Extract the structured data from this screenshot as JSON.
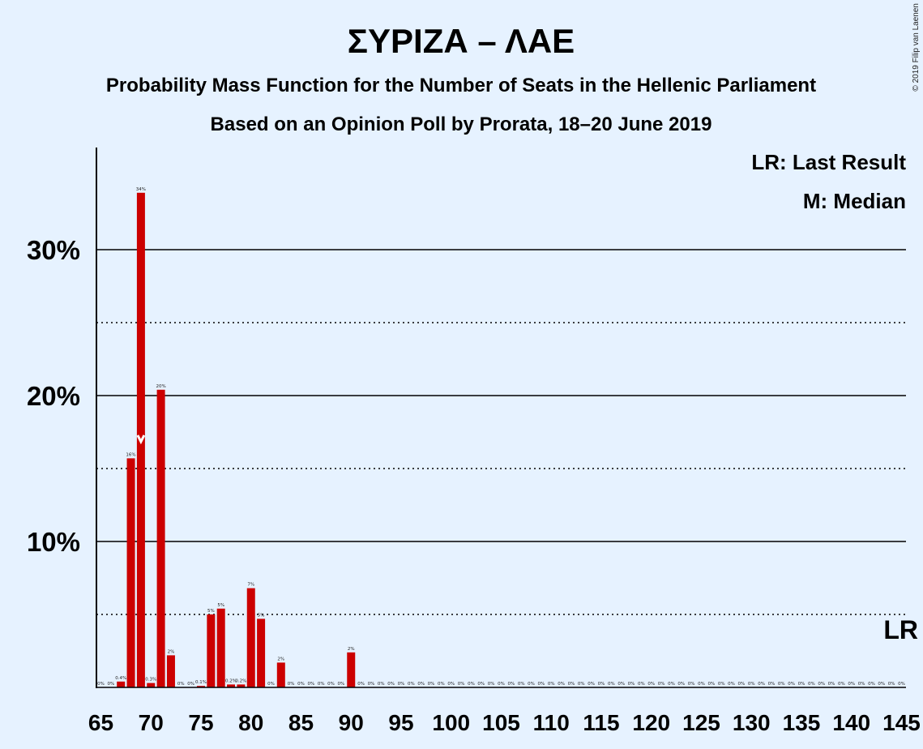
{
  "chart_data": {
    "type": "bar",
    "title": "ΣΥΡΙΖΑ – ΛΑΕ",
    "subtitle": "Probability Mass Function for the Number of Seats in the Hellenic Parliament",
    "subtitle2": "Based on an Opinion Poll by Prorata, 18–20 June 2019",
    "copyright": "© 2019 Filip van Laenen",
    "legend": {
      "lr": "LR: Last Result",
      "m": "M: Median",
      "placement": "top-right"
    },
    "lr_label": "LR",
    "median_label": "M",
    "median_seat": 69,
    "last_result_seat": 145,
    "xlim": [
      65,
      145
    ],
    "ylim": [
      0,
      37
    ],
    "x_ticks": [
      65,
      70,
      75,
      80,
      85,
      90,
      95,
      100,
      105,
      110,
      115,
      120,
      125,
      130,
      135,
      140,
      145
    ],
    "x_tick_labels": [
      "65",
      "70",
      "75",
      "80",
      "85",
      "90",
      "95",
      "100",
      "105",
      "110",
      "115",
      "120",
      "125",
      "130",
      "135",
      "140",
      "145"
    ],
    "y_ticks_major": [
      10,
      20,
      30
    ],
    "y_tick_labels": [
      "10%",
      "20%",
      "30%"
    ],
    "y_ticks_minor": [
      5,
      15,
      25
    ],
    "grid": true,
    "color": "#cc0000",
    "seats": [
      65,
      66,
      67,
      68,
      69,
      70,
      71,
      72,
      73,
      74,
      75,
      76,
      77,
      78,
      79,
      80,
      81,
      82,
      83,
      84,
      85,
      86,
      87,
      88,
      89,
      90,
      91,
      92,
      93,
      94,
      95,
      96,
      97,
      98,
      99,
      100,
      101,
      102,
      103,
      104,
      105,
      106,
      107,
      108,
      109,
      110,
      111,
      112,
      113,
      114,
      115,
      116,
      117,
      118,
      119,
      120,
      121,
      122,
      123,
      124,
      125,
      126,
      127,
      128,
      129,
      130,
      131,
      132,
      133,
      134,
      135,
      136,
      137,
      138,
      139,
      140,
      141,
      142,
      143,
      144,
      145
    ],
    "values": [
      0,
      0,
      0.4,
      15.7,
      33.9,
      0.3,
      20.4,
      2.2,
      0,
      0,
      0.1,
      5.0,
      5.4,
      0.2,
      0.2,
      6.8,
      4.7,
      0,
      1.7,
      0,
      0,
      0,
      0,
      0,
      0,
      2.4,
      0,
      0,
      0,
      0,
      0,
      0,
      0,
      0,
      0,
      0,
      0,
      0,
      0,
      0,
      0,
      0,
      0,
      0,
      0,
      0,
      0,
      0,
      0,
      0,
      0,
      0,
      0,
      0,
      0,
      0,
      0,
      0,
      0,
      0,
      0,
      0,
      0,
      0,
      0,
      0,
      0,
      0,
      0,
      0,
      0,
      0,
      0,
      0,
      0,
      0,
      0,
      0,
      0,
      0,
      0
    ],
    "value_labels": [
      "0%",
      "0%",
      "0.4%",
      "16%",
      "34%",
      "0.3%",
      "20%",
      "2%",
      "0%",
      "0%",
      "0.1%",
      "5%",
      "5%",
      "0.2%",
      "0.2%",
      "7%",
      "5%",
      "0%",
      "2%",
      "0%",
      "0%",
      "0%",
      "0%",
      "0%",
      "0%",
      "2%",
      "0%",
      "0%",
      "0%",
      "0%",
      "0%",
      "0%",
      "0%",
      "0%",
      "0%",
      "0%",
      "0%",
      "0%",
      "0%",
      "0%",
      "0%",
      "0%",
      "0%",
      "0%",
      "0%",
      "0%",
      "0%",
      "0%",
      "0%",
      "0%",
      "0%",
      "0%",
      "0%",
      "0%",
      "0%",
      "0%",
      "0%",
      "0%",
      "0%",
      "0%",
      "0%",
      "0%",
      "0%",
      "0%",
      "0%",
      "0%",
      "0%",
      "0%",
      "0%",
      "0%",
      "0%",
      "0%",
      "0%",
      "0%",
      "0%",
      "0%",
      "0%",
      "0%",
      "0%",
      "0%",
      "0%"
    ]
  }
}
